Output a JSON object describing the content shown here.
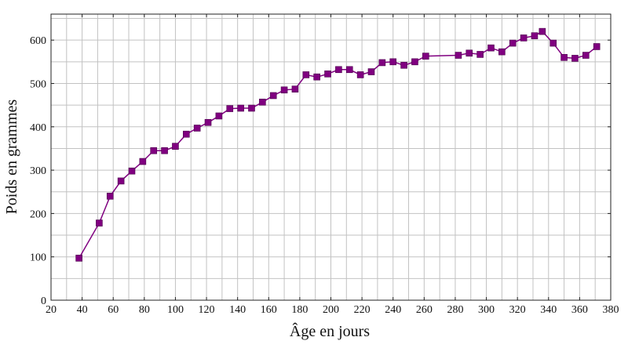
{
  "chart_data": {
    "type": "line",
    "title": "",
    "xlabel": "Âge en jours",
    "ylabel": "Poids en grammes",
    "xlim": [
      20,
      380
    ],
    "ylim": [
      0,
      660
    ],
    "x_ticks": [
      20,
      40,
      60,
      80,
      100,
      120,
      140,
      160,
      180,
      200,
      220,
      240,
      260,
      280,
      300,
      320,
      340,
      360,
      380
    ],
    "y_ticks": [
      0,
      100,
      200,
      300,
      400,
      500,
      600
    ],
    "x_minor_step": 10,
    "y_minor_step": 50,
    "grid": true,
    "color": "#800080",
    "marker": "square",
    "series": [
      {
        "x": [
          38,
          51,
          58,
          65,
          72,
          79,
          86,
          93,
          100,
          107,
          114,
          121,
          128,
          135,
          142,
          149,
          156,
          163,
          170,
          177,
          184,
          191,
          198,
          205,
          212,
          219,
          226,
          233,
          240,
          247,
          254,
          261,
          282,
          289,
          296,
          303,
          310,
          317,
          324,
          331,
          336,
          343,
          350,
          357,
          364,
          371
        ],
        "y": [
          97,
          178,
          240,
          275,
          298,
          320,
          345,
          345,
          355,
          383,
          397,
          410,
          425,
          442,
          443,
          443,
          457,
          472,
          485,
          487,
          520,
          515,
          522,
          532,
          532,
          520,
          527,
          548,
          550,
          542,
          550,
          563,
          565,
          570,
          567,
          582,
          573,
          593,
          605,
          610,
          620,
          593,
          560,
          558,
          565,
          585
        ]
      }
    ]
  }
}
